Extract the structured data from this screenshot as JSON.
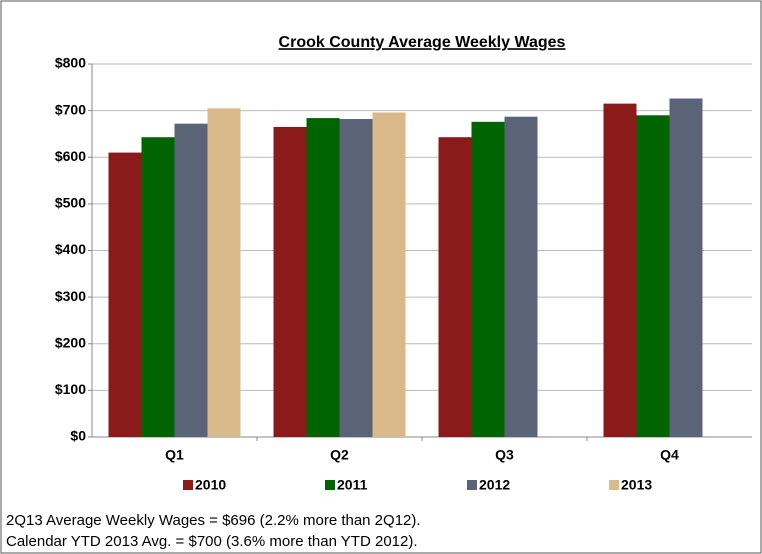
{
  "chart_data": {
    "type": "bar",
    "title": "Crook County Average Weekly Wages",
    "categories": [
      "Q1",
      "Q2",
      "Q3",
      "Q4"
    ],
    "series": [
      {
        "name": "2010",
        "color": "#8b1a1a",
        "values": [
          610,
          665,
          643,
          715
        ]
      },
      {
        "name": "2011",
        "color": "#006400",
        "values": [
          643,
          684,
          676,
          690
        ]
      },
      {
        "name": "2012",
        "color": "#5a6378",
        "values": [
          672,
          682,
          687,
          726
        ]
      },
      {
        "name": "2013",
        "color": "#d9b98a",
        "values": [
          705,
          696,
          null,
          null
        ]
      }
    ],
    "ylim": [
      0,
      800
    ],
    "yticks": [
      {
        "value": 0,
        "label": "$0"
      },
      {
        "value": 100,
        "label": "$100"
      },
      {
        "value": 200,
        "label": "$200"
      },
      {
        "value": 300,
        "label": "$300"
      },
      {
        "value": 400,
        "label": "$400"
      },
      {
        "value": 500,
        "label": "$500"
      },
      {
        "value": 600,
        "label": "$600"
      },
      {
        "value": 700,
        "label": "$700"
      },
      {
        "value": 800,
        "label": "$800"
      }
    ],
    "grid": true,
    "legend": "bottom",
    "notes": [
      "2Q13 Average Weekly Wages = $696 (2.2% more than 2Q12).",
      "Calendar YTD 2013 Avg. = $700 (3.6% more than YTD 2012)."
    ]
  }
}
